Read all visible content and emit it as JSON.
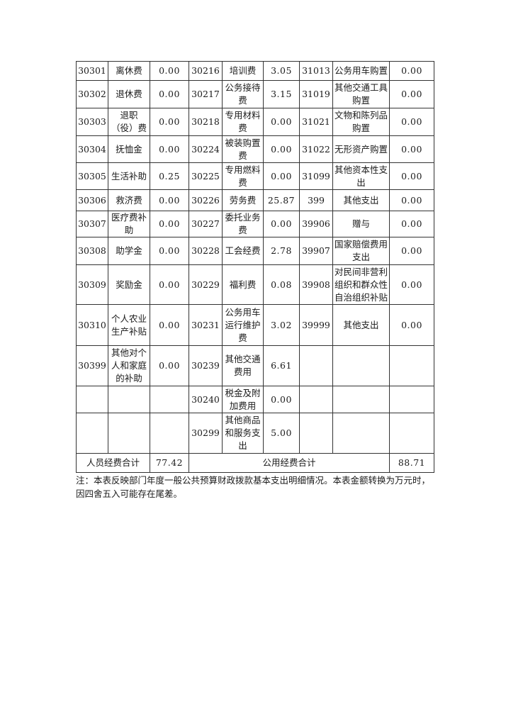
{
  "table": {
    "rows": [
      [
        "30301",
        "离休费",
        "0.00",
        "30216",
        "培训费",
        "3.05",
        "31013",
        "公务用车购置",
        "0.00"
      ],
      [
        "30302",
        "退休费",
        "0.00",
        "30217",
        "公务接待费",
        "3.15",
        "31019",
        "其他交通工具购置",
        "0.00"
      ],
      [
        "30303",
        "退职（役）费",
        "0.00",
        "30218",
        "专用材料费",
        "0.00",
        "31021",
        "文物和陈列品购置",
        "0.00"
      ],
      [
        "30304",
        "抚恤金",
        "0.00",
        "30224",
        "被装购置费",
        "0.00",
        "31022",
        "无形资产购置",
        "0.00"
      ],
      [
        "30305",
        "生活补助",
        "0.25",
        "30225",
        "专用燃料费",
        "0.00",
        "31099",
        "其他资本性支出",
        "0.00"
      ],
      [
        "30306",
        "救济费",
        "0.00",
        "30226",
        "劳务费",
        "25.87",
        "399",
        "其他支出",
        "0.00"
      ],
      [
        "30307",
        "医疗费补助",
        "0.00",
        "30227",
        "委托业务费",
        "0.00",
        "39906",
        "赠与",
        "0.00"
      ],
      [
        "30308",
        "助学金",
        "0.00",
        "30228",
        "工会经费",
        "2.78",
        "39907",
        "国家赔偿费用支出",
        "0.00"
      ],
      [
        "30309",
        "奖励金",
        "0.00",
        "30229",
        "福利费",
        "0.08",
        "39908",
        "对民间非营利组织和群众性自治组织补贴",
        "0.00"
      ],
      [
        "30310",
        "个人农业生产补贴",
        "0.00",
        "30231",
        "公务用车运行维护费",
        "3.02",
        "39999",
        "其他支出",
        "0.00"
      ],
      [
        "30399",
        "其他对个人和家庭的补助",
        "0.00",
        "30239",
        "其他交通费用",
        "6.61",
        "",
        "",
        ""
      ],
      [
        "",
        "",
        "",
        "30240",
        "税金及附加费用",
        "0.00",
        "",
        "",
        ""
      ],
      [
        "",
        "",
        "",
        "30299",
        "其他商品和服务支出",
        "5.00",
        "",
        "",
        ""
      ]
    ],
    "totals": {
      "personnel_label": "人员经费合计",
      "personnel_value": "77.42",
      "public_label": "公用经费合计",
      "public_value": "88.71"
    }
  },
  "note": "注：本表反映部门年度一般公共预算财政拨款基本支出明细情况。本表金额转换为万元时，因四舍五入可能存在尾差。"
}
